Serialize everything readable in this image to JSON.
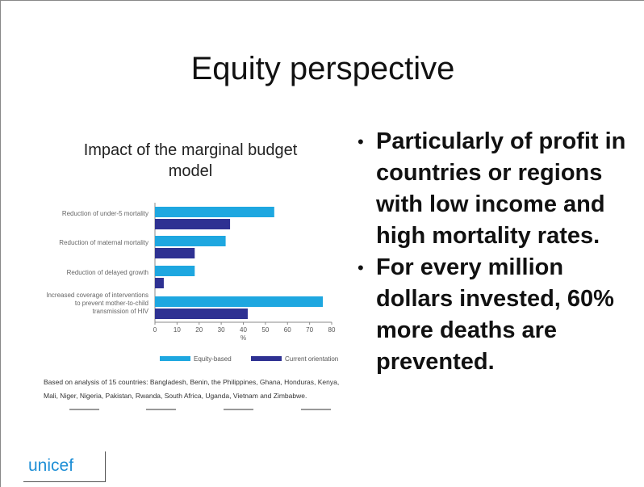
{
  "slide_title": "Equity perspective",
  "chart_data": {
    "type": "barh",
    "title": "Impact of the marginal budget model",
    "categories": [
      "Reduction of under-5 mortality",
      "Reduction of maternal mortality",
      "Reduction of delayed growth",
      "Increased coverage of interventions to prevent mother-to-child transmission of HIV"
    ],
    "series": [
      {
        "name": "Equity-based",
        "color": "#1ea7e0",
        "values": [
          54,
          32,
          18,
          76
        ]
      },
      {
        "name": "Current orientation",
        "color": "#2e3192",
        "values": [
          34,
          18,
          4,
          42
        ]
      }
    ],
    "xlabel": "%",
    "xlim": [
      0,
      80
    ],
    "xticks": [
      0,
      10,
      20,
      30,
      40,
      50,
      60,
      70,
      80
    ],
    "legend": "bottom",
    "note": "Based on analysis of 15 countries: Bangladesh, Benin, the Philippines, Ghana, Honduras, Kenya, Mali, Niger, Nigeria, Pakistan, Rwanda, South Africa, Uganda, Vietnam and Zimbabwe."
  },
  "bullets": [
    "Particularly of profit in countries or regions with low income and high mortality rates.",
    "For every million dollars invested, 60% more deaths are prevented."
  ],
  "logo": "unicef"
}
